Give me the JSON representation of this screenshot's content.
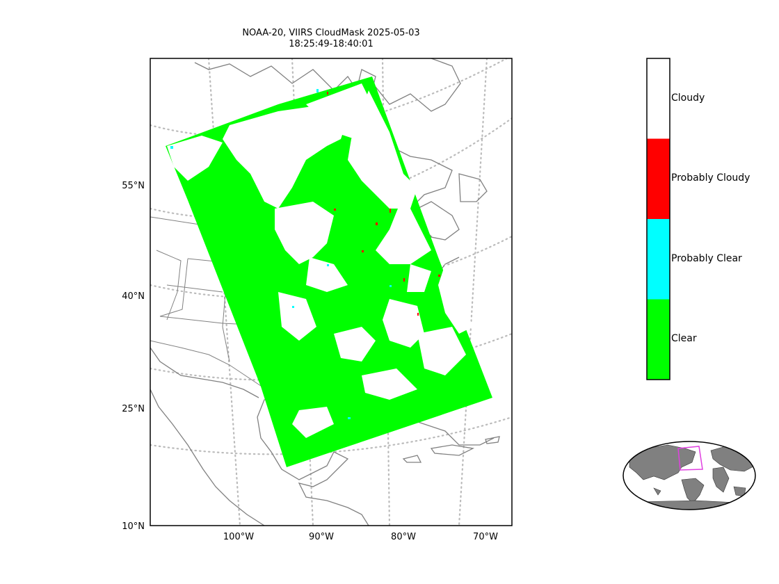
{
  "title": {
    "line1": "NOAA-20, VIIRS CloudMask 2025-05-03",
    "line2": "18:25:49-18:40:01"
  },
  "map": {
    "lat_labels": [
      "55°N",
      "40°N",
      "25°N",
      "10°N"
    ],
    "lon_labels": [
      "100°W",
      "90°W",
      "80°W",
      "70°W"
    ],
    "gridline_color": "#bbbbbb",
    "border_color": "#808080"
  },
  "colorbar": {
    "categories": [
      {
        "label": "Cloudy",
        "color": "#ffffff"
      },
      {
        "label": "Probably Cloudy",
        "color": "#ff0000"
      },
      {
        "label": "Probably Clear",
        "color": "#00ffff"
      },
      {
        "label": "Clear",
        "color": "#00ff00"
      }
    ]
  },
  "inset": {
    "land_color": "#808080",
    "swath_outline_color": "#e040e0"
  }
}
